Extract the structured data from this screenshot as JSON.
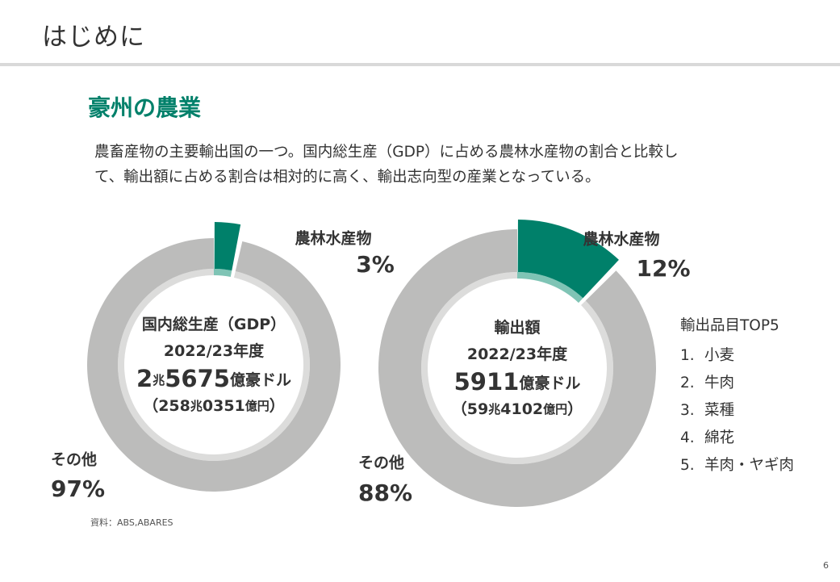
{
  "header": {
    "title": "はじめに"
  },
  "section": {
    "heading": "豪州の農業",
    "intro_lines": [
      "農畜産物の主要輸出国の一つ。国内総生産（GDP）に占める農林水産物の割合と比較し",
      "て、輸出額に占める割合は相対的に高く、輸出志向型の産業となっている。"
    ]
  },
  "colors": {
    "accent": "#00806a",
    "accent_light": "#7fc4b5",
    "other": "#bcbcbb",
    "other_light": "#dcdcdb",
    "text": "#333333"
  },
  "chart_data": [
    {
      "type": "pie",
      "title": "",
      "slices": [
        {
          "label": "農林水産物",
          "value": 3,
          "value_label": "3%"
        },
        {
          "label": "その他",
          "value": 97,
          "value_label": "97%"
        }
      ],
      "center_lines": [
        [
          {
            "t": "国内総生産（GDP）",
            "s": "m"
          }
        ],
        [
          {
            "t": "2022/23年度",
            "s": "m"
          }
        ],
        [
          {
            "t": "2",
            "s": "l"
          },
          {
            "t": "兆",
            "s": "s"
          },
          {
            "t": "5675",
            "s": "l"
          },
          {
            "t": "億豪ドル",
            "s": "m"
          }
        ],
        [
          {
            "t": "（258",
            "s": "m"
          },
          {
            "t": "兆",
            "s": "s"
          },
          {
            "t": "0351",
            "s": "m"
          },
          {
            "t": "億円",
            "s": "s"
          },
          {
            "t": "）",
            "s": "m"
          }
        ]
      ]
    },
    {
      "type": "pie",
      "title": "",
      "slices": [
        {
          "label": "農林水産物",
          "value": 12,
          "value_label": "12%"
        },
        {
          "label": "その他",
          "value": 88,
          "value_label": "88%"
        }
      ],
      "center_lines": [
        [
          {
            "t": "輸出額",
            "s": "m"
          }
        ],
        [
          {
            "t": "2022/23年度",
            "s": "m"
          }
        ],
        [
          {
            "t": "5911",
            "s": "l"
          },
          {
            "t": "億豪ドル",
            "s": "m"
          }
        ],
        [
          {
            "t": "（59",
            "s": "m"
          },
          {
            "t": "兆",
            "s": "s"
          },
          {
            "t": "4102",
            "s": "m"
          },
          {
            "t": "億円",
            "s": "s"
          },
          {
            "t": "）",
            "s": "m"
          }
        ]
      ]
    }
  ],
  "export_items": {
    "heading": "輸出品目TOP5",
    "items": [
      {
        "num": "1.",
        "label": "小麦"
      },
      {
        "num": "2.",
        "label": "牛肉"
      },
      {
        "num": "3.",
        "label": "菜種"
      },
      {
        "num": "4.",
        "label": "綿花"
      },
      {
        "num": "5.",
        "label": "羊肉・ヤギ肉"
      }
    ]
  },
  "footer": {
    "source": "資料：ABS,ABARES",
    "page_number": "6"
  }
}
